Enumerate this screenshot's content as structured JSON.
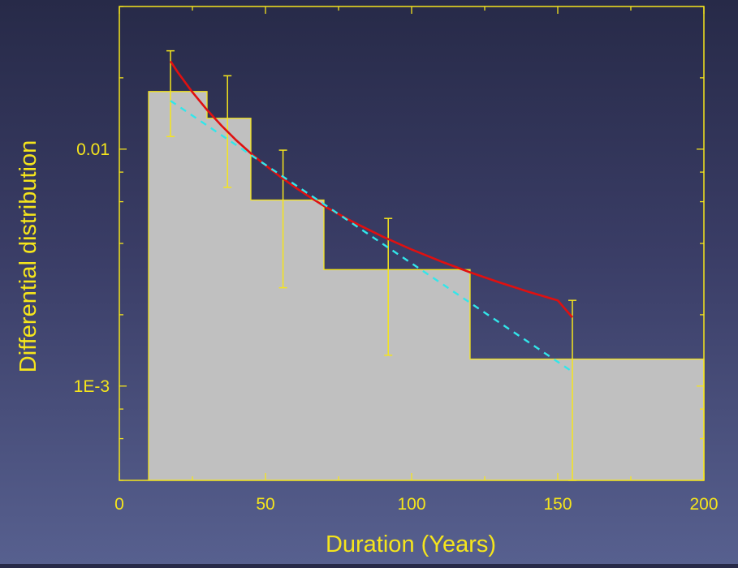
{
  "chart_data": {
    "type": "bar",
    "title": "",
    "xlabel": "Duration (Years)",
    "ylabel": "Differential distribution",
    "xlim": [
      0,
      200
    ],
    "ylim": [
      0.0004,
      0.04
    ],
    "yscale": "log",
    "grid": false,
    "x_ticks": [
      0,
      50,
      100,
      150,
      200
    ],
    "x_tick_labels": [
      "0",
      "50",
      "100",
      "150",
      "200"
    ],
    "y_ticks": [
      0.001,
      0.01
    ],
    "y_tick_labels": [
      "1E-3",
      "0.01"
    ],
    "histogram": {
      "bins": [
        {
          "x0": 10,
          "x1": 30,
          "value": 0.0175
        },
        {
          "x0": 30,
          "x1": 45,
          "value": 0.0135
        },
        {
          "x0": 45,
          "x1": 70,
          "value": 0.0061
        },
        {
          "x0": 70,
          "x1": 120,
          "value": 0.0031
        },
        {
          "x0": 120,
          "x1": 200,
          "value": 0.0013
        }
      ]
    },
    "error_bars": [
      {
        "x": 17.5,
        "low": 0.0113,
        "high": 0.026
      },
      {
        "x": 37,
        "low": 0.0069,
        "high": 0.0204
      },
      {
        "x": 56,
        "low": 0.0026,
        "high": 0.0099
      },
      {
        "x": 92,
        "low": 0.00135,
        "high": 0.0051
      },
      {
        "x": 155,
        "low": 0.0004,
        "high": 0.0023
      }
    ],
    "series": [
      {
        "style": "solid",
        "color": "#e01010",
        "x": [
          17.5,
          20,
          25,
          30,
          35,
          40,
          45,
          50,
          55,
          60,
          65,
          70,
          80,
          90,
          100,
          110,
          120,
          130,
          140,
          150,
          155
        ],
        "y": [
          0.0235,
          0.0211,
          0.0174,
          0.01465,
          0.01255,
          0.0109,
          0.0096,
          0.00855,
          0.00766,
          0.00692,
          0.0063,
          0.00576,
          0.00492,
          0.00428,
          0.00377,
          0.00336,
          0.00302,
          0.00274,
          0.0025,
          0.0023,
          0.00195
        ]
      },
      {
        "style": "dashed",
        "color": "#32e6ea",
        "x": [
          17.5,
          155
        ],
        "y": [
          0.016,
          0.00115
        ]
      }
    ],
    "colors": {
      "axis": "#f5e51c",
      "histogram_fill": "#c0c0c0",
      "histogram_edge": "#f5e51c",
      "error_bar": "#f5e51c",
      "label": "#f5e51c"
    }
  }
}
